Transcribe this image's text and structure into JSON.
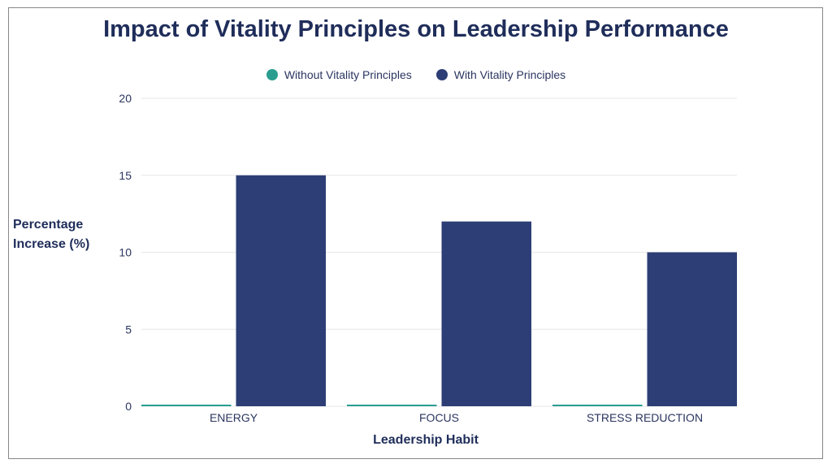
{
  "chart_data": {
    "type": "bar",
    "title": "Impact of Vitality Principles on Leadership Performance",
    "xlabel": "Leadership Habit",
    "ylabel": "Percentage Increase (%)",
    "categories": [
      "ENERGY",
      "FOCUS",
      "STRESS REDUCTION"
    ],
    "series": [
      {
        "name": "Without Vitality Principles",
        "color": "#2a9d8f",
        "values": [
          0,
          0,
          0
        ]
      },
      {
        "name": "With Vitality Principles",
        "color": "#2c3e75",
        "values": [
          15,
          12,
          10
        ]
      }
    ],
    "ylim": [
      0,
      20
    ],
    "yticks": [
      0,
      5,
      10,
      15,
      20
    ],
    "grid": true,
    "legend": "top"
  },
  "ylabel_lines": [
    "Percentage",
    "Increase (%)"
  ]
}
